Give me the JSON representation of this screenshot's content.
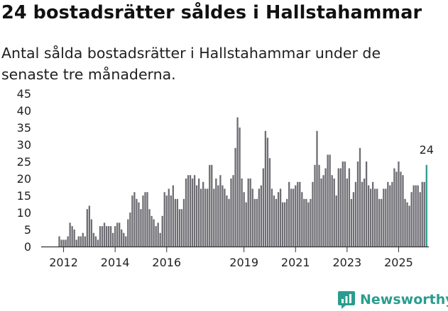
{
  "title": "24 bostadsrätter såldes i Hallstahammar",
  "subtitle": "Antal sålda bostadsrätter i Hallstahammar under de senaste tre månaderna.",
  "brand": {
    "name": "Newsworthy",
    "icon": "newsworthy-logo-icon"
  },
  "colors": {
    "bar": "#6e6d73",
    "highlight": "#2a9d8f",
    "axis": "#333333",
    "text": "#222222"
  },
  "chart_data": {
    "type": "bar",
    "title": "24 bostadsrätter såldes i Hallstahammar",
    "xlabel": "",
    "ylabel": "",
    "ylim": [
      0,
      45
    ],
    "yticks": [
      0,
      5,
      10,
      15,
      20,
      25,
      30,
      35,
      40,
      45
    ],
    "xticks": [
      {
        "label": "2012",
        "year": 2012
      },
      {
        "label": "2014",
        "year": 2014
      },
      {
        "label": "2016",
        "year": 2016
      },
      {
        "label": "2019",
        "year": 2019
      },
      {
        "label": "2021",
        "year": 2021
      },
      {
        "label": "2023",
        "year": 2023
      },
      {
        "label": "2025",
        "year": 2025
      }
    ],
    "start": {
      "year": 2011,
      "month": 11
    },
    "values": [
      3,
      2,
      2,
      2,
      3,
      7,
      6,
      5,
      2,
      3,
      3,
      4,
      3,
      11,
      12,
      8,
      4,
      3,
      2,
      6,
      6,
      7,
      6,
      6,
      6,
      4,
      6,
      7,
      7,
      5,
      4,
      3,
      8,
      10,
      15,
      16,
      14,
      13,
      11,
      15,
      16,
      16,
      11,
      9,
      8,
      6,
      7,
      4,
      9,
      16,
      15,
      17,
      15,
      18,
      14,
      14,
      11,
      11,
      14,
      20,
      21,
      21,
      20,
      21,
      18,
      20,
      17,
      19,
      17,
      17,
      24,
      24,
      17,
      20,
      18,
      21,
      18,
      17,
      15,
      14,
      20,
      21,
      29,
      38,
      35,
      20,
      16,
      13,
      20,
      20,
      17,
      14,
      14,
      17,
      18,
      23,
      34,
      32,
      26,
      17,
      15,
      14,
      16,
      17,
      13,
      13,
      14,
      19,
      17,
      17,
      18,
      19,
      19,
      16,
      14,
      14,
      13,
      14,
      19,
      24,
      34,
      24,
      20,
      21,
      23,
      27,
      27,
      21,
      20,
      15,
      23,
      23,
      25,
      25,
      20,
      23,
      14,
      16,
      19,
      25,
      29,
      19,
      20,
      25,
      18,
      17,
      19,
      17,
      17,
      14,
      14,
      17,
      17,
      19,
      18,
      19,
      23,
      22,
      25,
      22,
      21,
      14,
      13,
      12,
      16,
      18,
      18,
      18,
      16,
      19,
      19,
      24
    ],
    "highlight_index": 171,
    "annotation": {
      "label": "24",
      "value": 24
    }
  }
}
